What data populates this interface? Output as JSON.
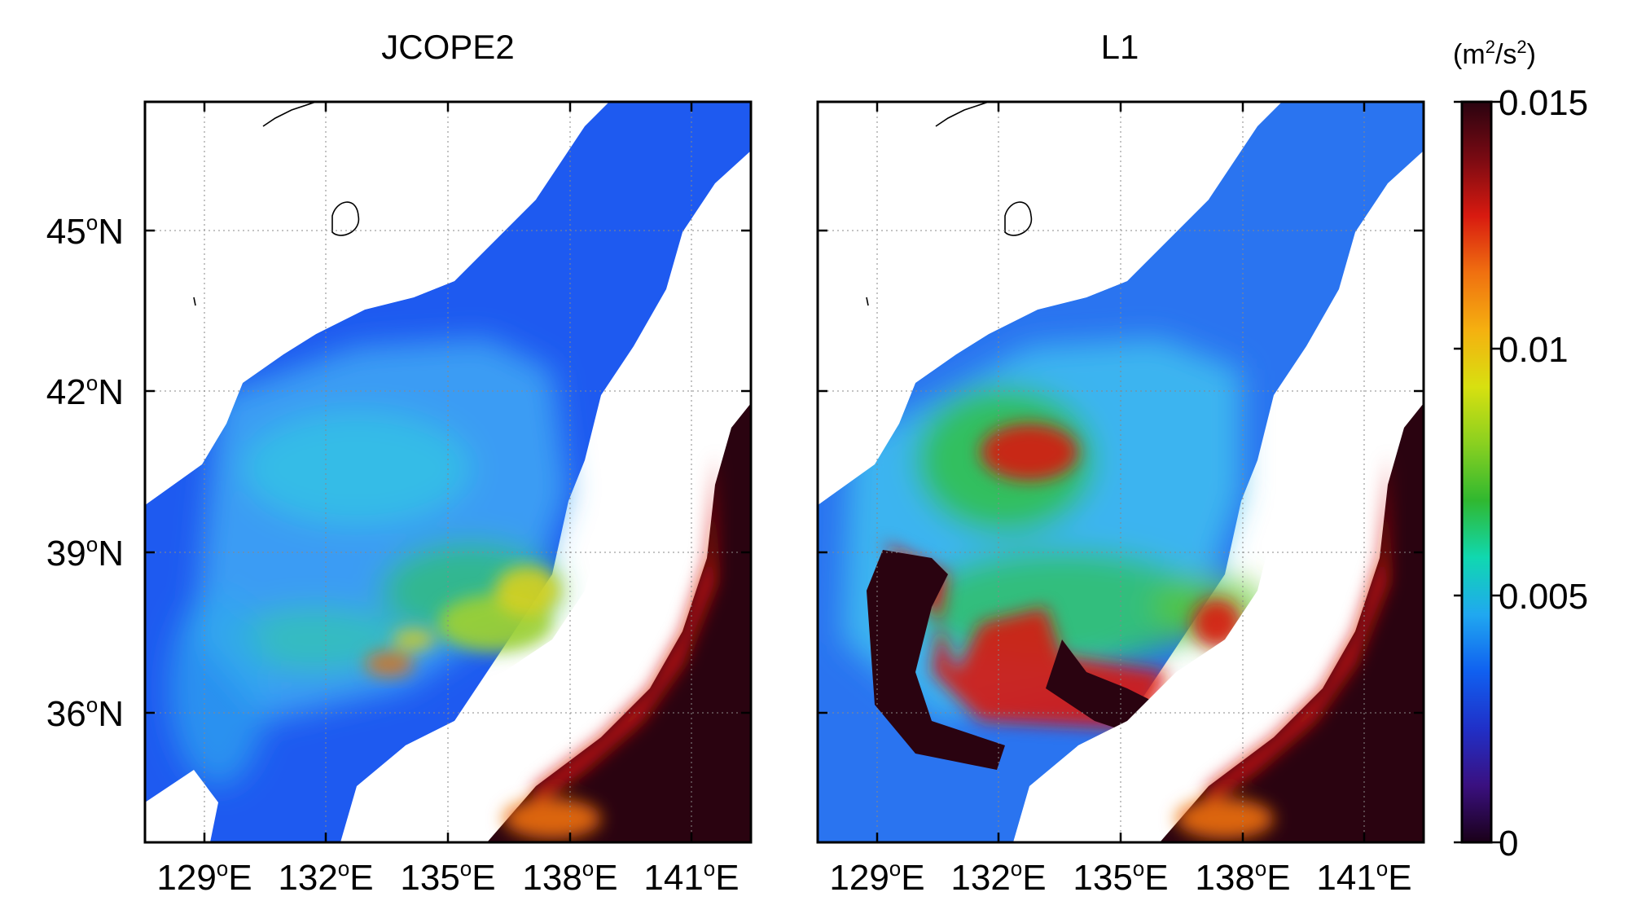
{
  "panels": [
    {
      "title": "JCOPE2"
    },
    {
      "title": "L1"
    }
  ],
  "axes": {
    "x_ticks": [
      {
        "deg": "129",
        "sym": "o",
        "hemi": "E"
      },
      {
        "deg": "132",
        "sym": "o",
        "hemi": "E"
      },
      {
        "deg": "135",
        "sym": "o",
        "hemi": "E"
      },
      {
        "deg": "138",
        "sym": "o",
        "hemi": "E"
      },
      {
        "deg": "141",
        "sym": "o",
        "hemi": "E"
      }
    ],
    "y_ticks": [
      {
        "deg": "45",
        "sym": "o",
        "hemi": "N"
      },
      {
        "deg": "42",
        "sym": "o",
        "hemi": "N"
      },
      {
        "deg": "39",
        "sym": "o",
        "hemi": "N"
      },
      {
        "deg": "36",
        "sym": "o",
        "hemi": "N"
      }
    ]
  },
  "colorbar": {
    "unit": {
      "open": "(m",
      "sup1": "2",
      "mid": "/s",
      "sup2": "2",
      "close": ")"
    },
    "ticks": [
      "0.015",
      "0.01",
      "0.005",
      "0"
    ],
    "colors": [
      "#2a0310",
      "#7a0a12",
      "#d81a10",
      "#f07010",
      "#f5b010",
      "#d8e010",
      "#8ad020",
      "#30b830",
      "#10d8b0",
      "#20a8f0",
      "#1060f0",
      "#2030c8",
      "#3a1080",
      "#1a0018"
    ]
  },
  "colors": {
    "land": "#ffffff",
    "sea_low": "#1a4ff0",
    "sea_mid": "#3fa8f5",
    "sea_cyan": "#20d8e0",
    "sea_green": "#30c060",
    "sea_yellow": "#d8e020",
    "sea_red": "#e02010",
    "sea_dark": "#2a0310"
  }
}
